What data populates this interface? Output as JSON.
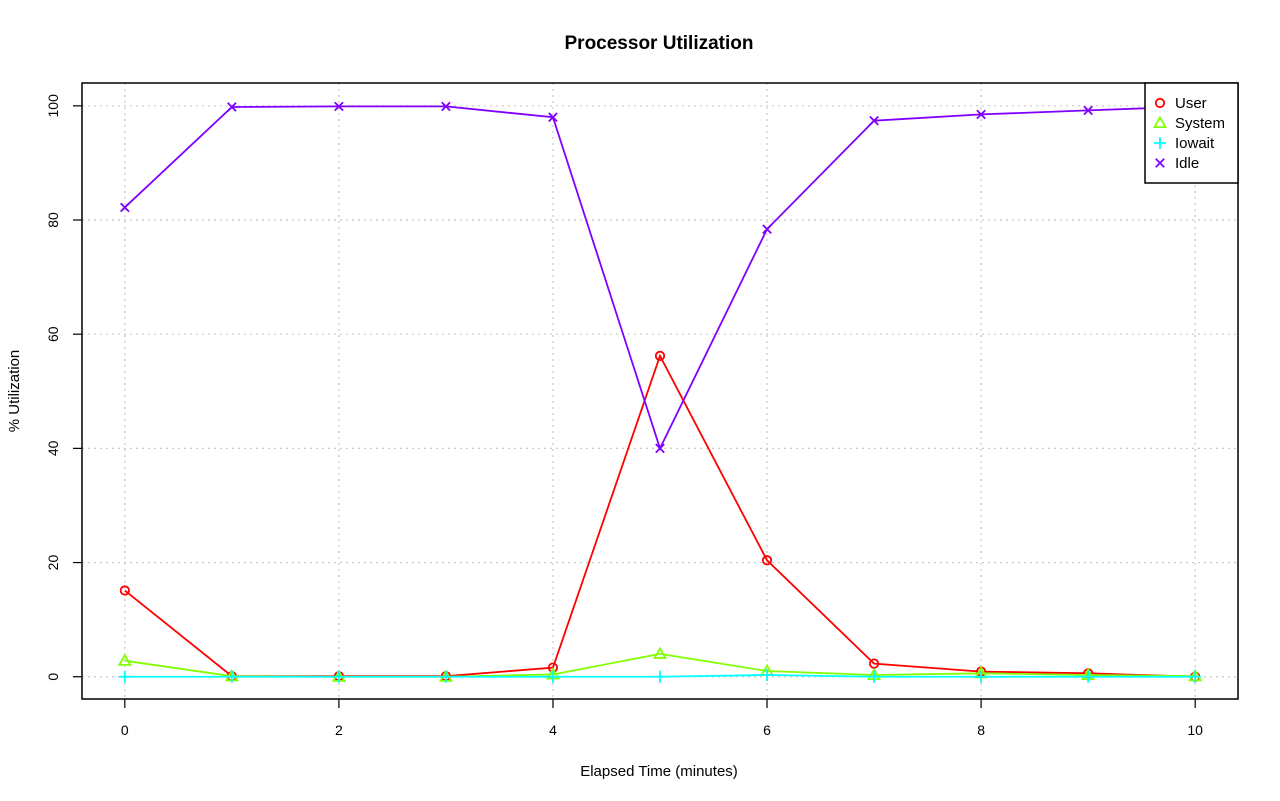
{
  "chart_data": {
    "type": "line",
    "title": "Processor Utilization",
    "xlabel": "Elapsed Time (minutes)",
    "ylabel": "% Utilization",
    "x": [
      0,
      1,
      2,
      3,
      4,
      5,
      6,
      7,
      8,
      9,
      10
    ],
    "xlim": [
      -0.4,
      10.4
    ],
    "ylim": [
      -3.9,
      104
    ],
    "xticks": [
      "0",
      "2",
      "4",
      "6",
      "8",
      "10"
    ],
    "yticks": [
      "0",
      "20",
      "40",
      "60",
      "80",
      "100"
    ],
    "grid": true,
    "legend_position": "top-right",
    "series": [
      {
        "name": "User",
        "color": "#ff0000",
        "marker": "circle",
        "values": [
          15.1,
          0.1,
          0.1,
          0.1,
          1.6,
          56.2,
          20.4,
          2.3,
          0.9,
          0.6,
          0.0
        ]
      },
      {
        "name": "System",
        "color": "#80ff00",
        "marker": "triangle",
        "values": [
          2.8,
          0.1,
          0.0,
          0.0,
          0.4,
          4.0,
          1.0,
          0.3,
          0.6,
          0.3,
          0.1
        ]
      },
      {
        "name": "Iowait",
        "color": "#00ffff",
        "marker": "plus",
        "values": [
          0.0,
          0.0,
          0.0,
          0.0,
          0.0,
          0.0,
          0.3,
          0.0,
          0.0,
          0.0,
          0.0
        ]
      },
      {
        "name": "Idle",
        "color": "#8000ff",
        "marker": "cross",
        "values": [
          82.2,
          99.8,
          99.9,
          99.9,
          98.0,
          40.0,
          78.4,
          97.4,
          98.5,
          99.2,
          99.9
        ]
      }
    ]
  }
}
